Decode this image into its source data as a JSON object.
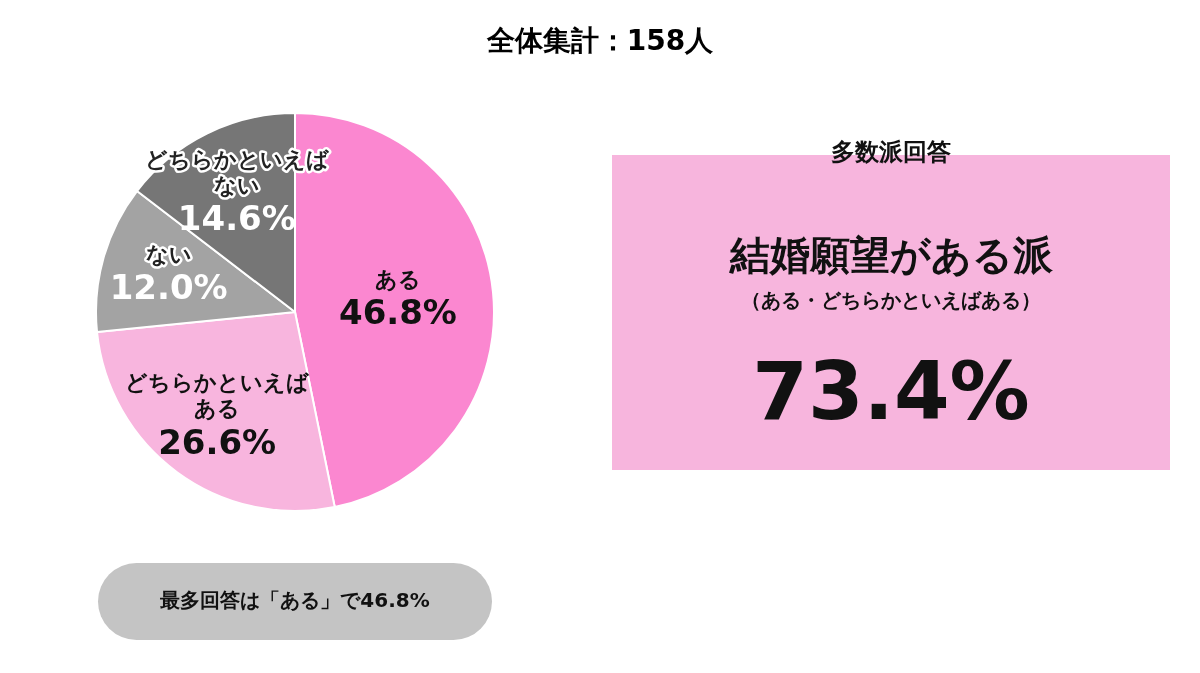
{
  "chart_data": {
    "type": "pie",
    "title": "全体集計：158人",
    "categories": [
      "ある",
      "どちらかといえばある",
      "ない",
      "どちらかといえばない"
    ],
    "values": [
      46.8,
      26.6,
      12.0,
      14.6
    ],
    "value_labels": [
      "46.8%",
      "26.6%",
      "12.0%",
      "14.6%"
    ],
    "colors": [
      "#fb87d0",
      "#f8b5de",
      "#a3a3a3",
      "#767676"
    ],
    "legend": false,
    "annotations": [
      "多数派回答",
      "結婚願望がある派",
      "（ある・どちらかといえばある）",
      "73.4%",
      "最多回答は「ある」で46.8%"
    ]
  }
}
